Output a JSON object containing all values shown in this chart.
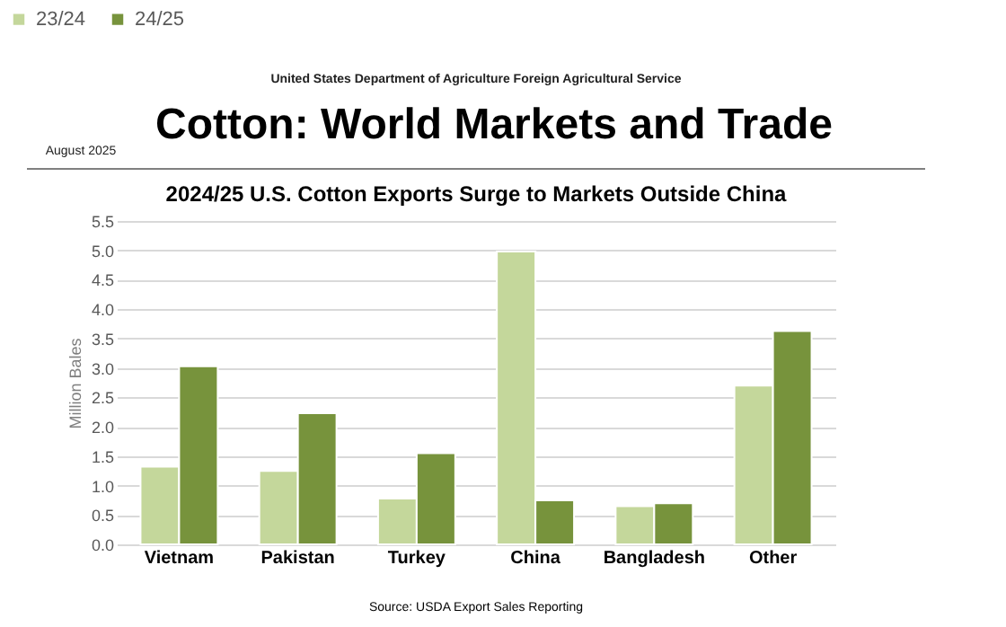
{
  "chart_data": {
    "type": "bar",
    "title": "Cotton: World Markets and Trade",
    "subtitle": "2024/25 U.S. Cotton Exports Surge to Markets Outside China",
    "annotations": [
      "United States Department of Agriculture Foreign Agricultural Service",
      "August 2025",
      "Source: USDA Export Sales Reporting"
    ],
    "ylabel": "Million Bales",
    "categories": [
      "Vietnam",
      "Pakistan",
      "Turkey",
      "China",
      "Bangladesh",
      "Other"
    ],
    "series": [
      {
        "name": "23/24",
        "color": "#c4d79b",
        "values": [
          1.32,
          1.25,
          0.78,
          4.98,
          0.65,
          2.7
        ]
      },
      {
        "name": "24/25",
        "color": "#77933c",
        "values": [
          3.03,
          2.23,
          1.55,
          0.75,
          0.7,
          3.63
        ]
      }
    ],
    "ylim": [
      0,
      5.5
    ],
    "yticks": [
      {
        "value": 0,
        "label": "0.0"
      },
      0.5,
      {
        "value": 1,
        "label": "1.0"
      },
      1.5,
      {
        "value": 2,
        "label": "2.0"
      },
      2.5,
      {
        "value": 3,
        "label": "3.0"
      },
      3.5,
      {
        "value": 4,
        "label": "4.0"
      },
      4.5,
      {
        "value": 5,
        "label": "5.0"
      },
      5.5
    ],
    "grid": "y",
    "legend": "top"
  }
}
